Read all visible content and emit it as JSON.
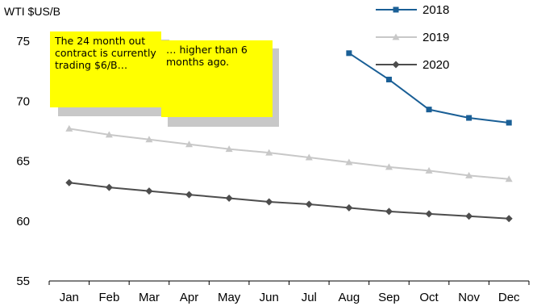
{
  "chart_data": {
    "type": "line",
    "ylabel": "WTI $US/B",
    "categories": [
      "Jan",
      "Feb",
      "Mar",
      "Apr",
      "May",
      "Jun",
      "Jul",
      "Aug",
      "Sep",
      "Oct",
      "Nov",
      "Dec"
    ],
    "ylim": [
      55,
      75
    ],
    "yticks": [
      55,
      60,
      65,
      70,
      75
    ],
    "grid": false,
    "legend_position": "top-right",
    "series": [
      {
        "name": "2018",
        "color": "#1a5f96",
        "marker": "square",
        "values": [
          null,
          null,
          null,
          null,
          null,
          null,
          null,
          74.0,
          71.8,
          69.3,
          68.6,
          68.2
        ]
      },
      {
        "name": "2019",
        "color": "#c8c8c8",
        "marker": "triangle",
        "values": [
          67.7,
          67.2,
          66.8,
          66.4,
          66.0,
          65.7,
          65.3,
          64.9,
          64.5,
          64.2,
          63.8,
          63.5
        ]
      },
      {
        "name": "2020",
        "color": "#4d4d4d",
        "marker": "diamond",
        "values": [
          63.2,
          62.8,
          62.5,
          62.2,
          61.9,
          61.6,
          61.4,
          61.1,
          60.8,
          60.6,
          60.4,
          60.2
        ]
      }
    ]
  },
  "annotations": [
    {
      "text": "The 24 month out contract is currently trading $6/B…"
    },
    {
      "text": "… higher than 6 months ago."
    }
  ]
}
